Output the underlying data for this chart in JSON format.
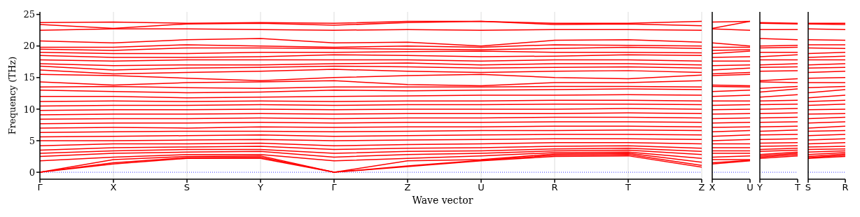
{
  "chart_data": [
    {
      "type": "line",
      "ylabel": "Frequency (THz)",
      "xlabel": "Wave vector",
      "grid": "x",
      "ylim": [
        -1.1,
        25.4
      ],
      "yticks": [
        0,
        5,
        10,
        15,
        20,
        25
      ],
      "categories": [
        "Γ",
        "X",
        "S",
        "Y",
        "Γ",
        "Z",
        "U",
        "R",
        "T",
        "Z"
      ],
      "ref_lines": [
        {
          "axis": "y",
          "value": 0,
          "color": "#0000ff",
          "line_style": "dotted"
        }
      ],
      "series": [
        {
          "color": "#ff0000",
          "values": [
            0,
            1.3,
            2.2,
            2.2,
            0,
            0.9,
            1.8,
            2.5,
            2.6,
            0.8
          ]
        },
        {
          "color": "#ff0000",
          "values": [
            0,
            1.5,
            2.3,
            2.4,
            0,
            1.0,
            1.9,
            2.7,
            2.8,
            1.1
          ]
        },
        {
          "color": "#ff0000",
          "values": [
            0,
            2.0,
            2.5,
            2.6,
            0,
            1.8,
            2.0,
            2.9,
            3.0,
            1.6
          ]
        },
        {
          "color": "#ff0000",
          "values": [
            1.8,
            2.4,
            2.8,
            2.8,
            1.8,
            2.2,
            2.6,
            3.1,
            3.2,
            2.2
          ]
        },
        {
          "color": "#ff0000",
          "values": [
            2.5,
            3.0,
            3.2,
            3.3,
            2.4,
            2.8,
            3.0,
            3.4,
            3.5,
            2.8
          ]
        },
        {
          "color": "#ff0000",
          "values": [
            3.0,
            3.4,
            3.6,
            3.6,
            3.0,
            3.3,
            3.4,
            3.7,
            3.8,
            3.3
          ]
        },
        {
          "color": "#ff0000",
          "values": [
            3.5,
            3.9,
            4.0,
            4.1,
            3.6,
            3.8,
            3.9,
            4.1,
            4.2,
            3.8
          ]
        },
        {
          "color": "#ff0000",
          "values": [
            4.2,
            4.5,
            4.5,
            4.6,
            4.2,
            4.4,
            4.5,
            4.7,
            4.7,
            4.5
          ]
        },
        {
          "color": "#ff0000",
          "values": [
            5.0,
            5.0,
            5.1,
            5.2,
            5.0,
            5.1,
            5.2,
            5.3,
            5.3,
            5.2
          ]
        },
        {
          "color": "#ff0000",
          "values": [
            5.6,
            5.7,
            5.8,
            5.9,
            5.7,
            5.8,
            5.9,
            6.0,
            6.0,
            5.9
          ]
        },
        {
          "color": "#ff0000",
          "values": [
            6.3,
            6.4,
            6.5,
            6.5,
            6.4,
            6.5,
            6.6,
            6.6,
            6.7,
            6.6
          ]
        },
        {
          "color": "#ff0000",
          "values": [
            7.0,
            7.1,
            7.0,
            7.2,
            7.1,
            7.2,
            7.2,
            7.3,
            7.3,
            7.2
          ]
        },
        {
          "color": "#ff0000",
          "values": [
            7.7,
            7.8,
            7.8,
            7.9,
            7.8,
            7.9,
            7.9,
            8.0,
            8.0,
            7.9
          ]
        },
        {
          "color": "#ff0000",
          "values": [
            8.4,
            8.5,
            8.5,
            8.6,
            8.5,
            8.6,
            8.6,
            8.7,
            8.7,
            8.6
          ]
        },
        {
          "color": "#ff0000",
          "values": [
            9.1,
            9.2,
            9.2,
            9.3,
            9.2,
            9.3,
            9.3,
            9.3,
            9.4,
            9.3
          ]
        },
        {
          "color": "#ff0000",
          "values": [
            9.8,
            9.9,
            9.9,
            10.0,
            9.9,
            10.0,
            10.0,
            10.0,
            10.1,
            10.0
          ]
        },
        {
          "color": "#ff0000",
          "values": [
            10.5,
            10.6,
            10.6,
            10.7,
            10.6,
            10.7,
            10.7,
            10.8,
            10.8,
            10.7
          ]
        },
        {
          "color": "#ff0000",
          "values": [
            11.2,
            11.3,
            11.2,
            11.3,
            11.2,
            11.3,
            11.3,
            11.4,
            11.4,
            11.3
          ]
        },
        {
          "color": "#ff0000",
          "values": [
            12.0,
            12.0,
            11.8,
            11.9,
            12.0,
            12.1,
            12.2,
            12.2,
            12.3,
            12.2
          ]
        },
        {
          "color": "#ff0000",
          "values": [
            13.0,
            12.8,
            12.6,
            12.7,
            13.0,
            12.9,
            13.0,
            13.1,
            13.2,
            13.1
          ]
        },
        {
          "color": "#ff0000",
          "values": [
            13.5,
            13.6,
            13.4,
            13.3,
            13.5,
            13.5,
            13.5,
            13.6,
            13.6,
            13.5
          ]
        },
        {
          "color": "#ff0000",
          "values": [
            14.3,
            13.8,
            14.2,
            14.3,
            14.5,
            13.9,
            13.7,
            14.2,
            14.2,
            14.5
          ]
        },
        {
          "color": "#ff0000",
          "values": [
            15.5,
            15.3,
            14.9,
            14.5,
            15.0,
            15.3,
            15.5,
            15.0,
            14.8,
            15.4
          ]
        },
        {
          "color": "#ff0000",
          "values": [
            16.2,
            15.6,
            15.8,
            16.0,
            16.3,
            16.0,
            15.8,
            16.0,
            16.1,
            15.8
          ]
        },
        {
          "color": "#ff0000",
          "values": [
            16.8,
            16.2,
            16.5,
            16.6,
            16.8,
            16.7,
            16.5,
            16.6,
            16.7,
            16.5
          ]
        },
        {
          "color": "#ff0000",
          "values": [
            17.2,
            16.9,
            17.0,
            17.0,
            17.2,
            17.3,
            17.0,
            17.2,
            17.2,
            17.0
          ]
        },
        {
          "color": "#ff0000",
          "values": [
            17.8,
            17.6,
            17.8,
            17.8,
            17.8,
            17.8,
            17.6,
            17.8,
            17.8,
            17.6
          ]
        },
        {
          "color": "#ff0000",
          "values": [
            18.5,
            18.2,
            18.2,
            18.3,
            18.6,
            18.5,
            18.3,
            18.4,
            18.6,
            18.5
          ]
        },
        {
          "color": "#ff0000",
          "values": [
            19.0,
            18.8,
            18.8,
            19.0,
            19.0,
            19.1,
            19.2,
            19.0,
            19.0,
            18.9
          ]
        },
        {
          "color": "#ff0000",
          "values": [
            19.5,
            19.3,
            19.7,
            19.7,
            19.6,
            19.5,
            19.4,
            19.6,
            19.8,
            19.6
          ]
        },
        {
          "color": "#ff0000",
          "values": [
            19.8,
            19.8,
            20.2,
            20.0,
            19.8,
            20.0,
            19.8,
            20.2,
            20.1,
            20.0
          ]
        },
        {
          "color": "#ff0000",
          "values": [
            20.8,
            20.5,
            21.0,
            21.2,
            20.5,
            20.6,
            20.0,
            20.9,
            21.0,
            20.6
          ]
        },
        {
          "color": "#ff0000",
          "values": [
            22.5,
            22.7,
            22.7,
            22.6,
            22.5,
            22.6,
            22.5,
            22.6,
            22.6,
            22.5
          ]
        },
        {
          "color": "#ff0000",
          "values": [
            23.4,
            22.8,
            23.5,
            23.6,
            23.3,
            23.7,
            23.9,
            23.4,
            23.5,
            23.2
          ]
        },
        {
          "color": "#ff0000",
          "values": [
            23.7,
            23.8,
            23.6,
            23.7,
            23.6,
            23.9,
            23.9,
            23.6,
            23.6,
            23.9
          ]
        }
      ]
    },
    {
      "type": "line",
      "tick_labels": "x",
      "ylim": [
        -1.1,
        25.4
      ],
      "categories": [
        "X",
        "U"
      ],
      "ref_lines": [
        {
          "axis": "y",
          "value": 0,
          "color": "#0000ff",
          "line_style": "dotted"
        }
      ],
      "series": [
        {
          "color": "#ff0000",
          "values": [
            1.3,
            1.8
          ]
        },
        {
          "color": "#ff0000",
          "values": [
            1.5,
            1.9
          ]
        },
        {
          "color": "#ff0000",
          "values": [
            2.0,
            2.0
          ]
        },
        {
          "color": "#ff0000",
          "values": [
            2.4,
            2.6
          ]
        },
        {
          "color": "#ff0000",
          "values": [
            3.0,
            3.0
          ]
        },
        {
          "color": "#ff0000",
          "values": [
            3.4,
            3.4
          ]
        },
        {
          "color": "#ff0000",
          "values": [
            3.9,
            3.9
          ]
        },
        {
          "color": "#ff0000",
          "values": [
            4.5,
            4.5
          ]
        },
        {
          "color": "#ff0000",
          "values": [
            5.0,
            5.2
          ]
        },
        {
          "color": "#ff0000",
          "values": [
            5.7,
            5.9
          ]
        },
        {
          "color": "#ff0000",
          "values": [
            6.4,
            6.6
          ]
        },
        {
          "color": "#ff0000",
          "values": [
            7.1,
            7.2
          ]
        },
        {
          "color": "#ff0000",
          "values": [
            7.8,
            7.9
          ]
        },
        {
          "color": "#ff0000",
          "values": [
            8.5,
            8.6
          ]
        },
        {
          "color": "#ff0000",
          "values": [
            9.2,
            9.3
          ]
        },
        {
          "color": "#ff0000",
          "values": [
            9.9,
            10.0
          ]
        },
        {
          "color": "#ff0000",
          "values": [
            10.6,
            10.7
          ]
        },
        {
          "color": "#ff0000",
          "values": [
            11.3,
            11.3
          ]
        },
        {
          "color": "#ff0000",
          "values": [
            12.0,
            12.2
          ]
        },
        {
          "color": "#ff0000",
          "values": [
            12.8,
            13.0
          ]
        },
        {
          "color": "#ff0000",
          "values": [
            13.6,
            13.5
          ]
        },
        {
          "color": "#ff0000",
          "values": [
            13.8,
            13.7
          ]
        },
        {
          "color": "#ff0000",
          "values": [
            15.3,
            15.5
          ]
        },
        {
          "color": "#ff0000",
          "values": [
            15.6,
            15.8
          ]
        },
        {
          "color": "#ff0000",
          "values": [
            16.2,
            16.5
          ]
        },
        {
          "color": "#ff0000",
          "values": [
            16.9,
            17.0
          ]
        },
        {
          "color": "#ff0000",
          "values": [
            17.6,
            17.6
          ]
        },
        {
          "color": "#ff0000",
          "values": [
            18.2,
            18.3
          ]
        },
        {
          "color": "#ff0000",
          "values": [
            18.8,
            19.2
          ]
        },
        {
          "color": "#ff0000",
          "values": [
            19.3,
            19.4
          ]
        },
        {
          "color": "#ff0000",
          "values": [
            19.8,
            19.8
          ]
        },
        {
          "color": "#ff0000",
          "values": [
            20.5,
            20.0
          ]
        },
        {
          "color": "#ff0000",
          "values": [
            22.7,
            22.5
          ]
        },
        {
          "color": "#ff0000",
          "values": [
            22.8,
            23.9
          ]
        },
        {
          "color": "#ff0000",
          "values": [
            23.8,
            23.9
          ]
        }
      ]
    },
    {
      "type": "line",
      "tick_labels": "x",
      "ylim": [
        -1.1,
        25.4
      ],
      "categories": [
        "Y",
        "T"
      ],
      "ref_lines": [
        {
          "axis": "y",
          "value": 0,
          "color": "#0000ff",
          "line_style": "dotted"
        }
      ],
      "series": [
        {
          "color": "#ff0000",
          "values": [
            2.2,
            2.6
          ]
        },
        {
          "color": "#ff0000",
          "values": [
            2.4,
            2.8
          ]
        },
        {
          "color": "#ff0000",
          "values": [
            2.6,
            3.0
          ]
        },
        {
          "color": "#ff0000",
          "values": [
            2.8,
            3.2
          ]
        },
        {
          "color": "#ff0000",
          "values": [
            3.3,
            3.5
          ]
        },
        {
          "color": "#ff0000",
          "values": [
            3.6,
            3.8
          ]
        },
        {
          "color": "#ff0000",
          "values": [
            4.1,
            4.2
          ]
        },
        {
          "color": "#ff0000",
          "values": [
            4.6,
            4.7
          ]
        },
        {
          "color": "#ff0000",
          "values": [
            5.2,
            5.3
          ]
        },
        {
          "color": "#ff0000",
          "values": [
            5.9,
            6.0
          ]
        },
        {
          "color": "#ff0000",
          "values": [
            6.5,
            6.7
          ]
        },
        {
          "color": "#ff0000",
          "values": [
            7.2,
            7.3
          ]
        },
        {
          "color": "#ff0000",
          "values": [
            7.9,
            8.0
          ]
        },
        {
          "color": "#ff0000",
          "values": [
            8.6,
            8.7
          ]
        },
        {
          "color": "#ff0000",
          "values": [
            9.3,
            9.4
          ]
        },
        {
          "color": "#ff0000",
          "values": [
            10.0,
            10.1
          ]
        },
        {
          "color": "#ff0000",
          "values": [
            10.7,
            10.8
          ]
        },
        {
          "color": "#ff0000",
          "values": [
            11.3,
            11.4
          ]
        },
        {
          "color": "#ff0000",
          "values": [
            11.9,
            12.3
          ]
        },
        {
          "color": "#ff0000",
          "values": [
            12.7,
            13.2
          ]
        },
        {
          "color": "#ff0000",
          "values": [
            13.3,
            13.6
          ]
        },
        {
          "color": "#ff0000",
          "values": [
            14.3,
            14.2
          ]
        },
        {
          "color": "#ff0000",
          "values": [
            14.5,
            14.8
          ]
        },
        {
          "color": "#ff0000",
          "values": [
            16.0,
            16.1
          ]
        },
        {
          "color": "#ff0000",
          "values": [
            16.6,
            16.7
          ]
        },
        {
          "color": "#ff0000",
          "values": [
            17.0,
            17.2
          ]
        },
        {
          "color": "#ff0000",
          "values": [
            17.8,
            17.8
          ]
        },
        {
          "color": "#ff0000",
          "values": [
            18.3,
            18.6
          ]
        },
        {
          "color": "#ff0000",
          "values": [
            19.0,
            19.0
          ]
        },
        {
          "color": "#ff0000",
          "values": [
            19.7,
            19.8
          ]
        },
        {
          "color": "#ff0000",
          "values": [
            20.0,
            20.1
          ]
        },
        {
          "color": "#ff0000",
          "values": [
            21.2,
            21.0
          ]
        },
        {
          "color": "#ff0000",
          "values": [
            22.6,
            22.6
          ]
        },
        {
          "color": "#ff0000",
          "values": [
            23.6,
            23.5
          ]
        },
        {
          "color": "#ff0000",
          "values": [
            23.7,
            23.6
          ]
        }
      ]
    },
    {
      "type": "line",
      "tick_labels": "x",
      "ylim": [
        -1.1,
        25.4
      ],
      "categories": [
        "S",
        "R"
      ],
      "ref_lines": [
        {
          "axis": "y",
          "value": 0,
          "color": "#0000ff",
          "line_style": "dotted"
        }
      ],
      "series": [
        {
          "color": "#ff0000",
          "values": [
            2.2,
            2.5
          ]
        },
        {
          "color": "#ff0000",
          "values": [
            2.3,
            2.7
          ]
        },
        {
          "color": "#ff0000",
          "values": [
            2.5,
            2.9
          ]
        },
        {
          "color": "#ff0000",
          "values": [
            2.8,
            3.1
          ]
        },
        {
          "color": "#ff0000",
          "values": [
            3.2,
            3.4
          ]
        },
        {
          "color": "#ff0000",
          "values": [
            3.6,
            3.7
          ]
        },
        {
          "color": "#ff0000",
          "values": [
            4.0,
            4.1
          ]
        },
        {
          "color": "#ff0000",
          "values": [
            4.5,
            4.7
          ]
        },
        {
          "color": "#ff0000",
          "values": [
            5.1,
            5.3
          ]
        },
        {
          "color": "#ff0000",
          "values": [
            5.8,
            6.0
          ]
        },
        {
          "color": "#ff0000",
          "values": [
            6.5,
            6.6
          ]
        },
        {
          "color": "#ff0000",
          "values": [
            7.0,
            7.3
          ]
        },
        {
          "color": "#ff0000",
          "values": [
            7.8,
            8.0
          ]
        },
        {
          "color": "#ff0000",
          "values": [
            8.5,
            8.7
          ]
        },
        {
          "color": "#ff0000",
          "values": [
            9.2,
            9.3
          ]
        },
        {
          "color": "#ff0000",
          "values": [
            9.9,
            10.0
          ]
        },
        {
          "color": "#ff0000",
          "values": [
            10.6,
            10.8
          ]
        },
        {
          "color": "#ff0000",
          "values": [
            11.2,
            11.4
          ]
        },
        {
          "color": "#ff0000",
          "values": [
            11.8,
            12.2
          ]
        },
        {
          "color": "#ff0000",
          "values": [
            12.6,
            13.1
          ]
        },
        {
          "color": "#ff0000",
          "values": [
            13.4,
            13.6
          ]
        },
        {
          "color": "#ff0000",
          "values": [
            14.2,
            14.2
          ]
        },
        {
          "color": "#ff0000",
          "values": [
            14.9,
            15.0
          ]
        },
        {
          "color": "#ff0000",
          "values": [
            15.8,
            16.0
          ]
        },
        {
          "color": "#ff0000",
          "values": [
            16.5,
            16.6
          ]
        },
        {
          "color": "#ff0000",
          "values": [
            17.0,
            17.2
          ]
        },
        {
          "color": "#ff0000",
          "values": [
            17.8,
            17.8
          ]
        },
        {
          "color": "#ff0000",
          "values": [
            18.2,
            18.4
          ]
        },
        {
          "color": "#ff0000",
          "values": [
            18.8,
            19.0
          ]
        },
        {
          "color": "#ff0000",
          "values": [
            19.7,
            19.6
          ]
        },
        {
          "color": "#ff0000",
          "values": [
            20.2,
            20.2
          ]
        },
        {
          "color": "#ff0000",
          "values": [
            21.0,
            20.9
          ]
        },
        {
          "color": "#ff0000",
          "values": [
            22.7,
            22.6
          ]
        },
        {
          "color": "#ff0000",
          "values": [
            23.5,
            23.4
          ]
        },
        {
          "color": "#ff0000",
          "values": [
            23.6,
            23.6
          ]
        }
      ]
    }
  ]
}
